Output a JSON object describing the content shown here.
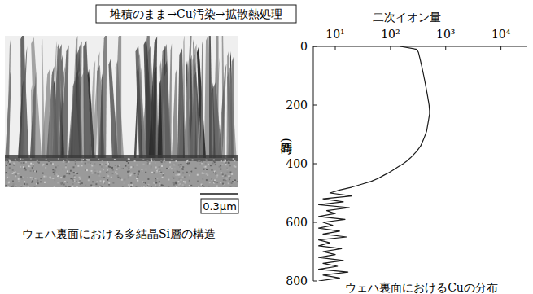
{
  "header": "堆積のまま→Cu汚染→拡散熱処理",
  "micrograph": {
    "scale_bar": "0.3μm",
    "caption": "ウェハ裏面における多結晶Si層の構造"
  },
  "chart_data": {
    "type": "line",
    "orientation": "horizontal",
    "log": "y",
    "grid": false,
    "color": "#1a1a1a",
    "y_label": "二次イオン量",
    "x_label": "時間 (s)",
    "caption": "ウェハ裏面におけるCuの分布",
    "x": [
      0,
      10,
      20,
      30,
      40,
      50,
      60,
      70,
      80,
      90,
      100,
      110,
      120,
      130,
      140,
      150,
      160,
      170,
      180,
      190,
      200,
      210,
      220,
      230,
      240,
      250,
      260,
      270,
      280,
      290,
      300,
      310,
      320,
      330,
      340,
      350,
      360,
      370,
      380,
      390,
      400,
      410,
      420,
      430,
      440,
      450,
      460,
      470,
      480,
      490,
      500,
      510,
      520,
      530,
      540,
      550,
      560,
      570,
      580,
      590,
      600,
      610,
      620,
      630,
      640,
      650,
      660,
      670,
      680,
      690,
      700,
      710,
      720,
      730,
      740,
      750,
      760,
      770,
      780,
      790,
      800
    ],
    "values": [
      150,
      300,
      320,
      330,
      340,
      350,
      360,
      370,
      380,
      390,
      400,
      410,
      420,
      430,
      440,
      450,
      460,
      470,
      480,
      490,
      500,
      505,
      510,
      510,
      500,
      490,
      480,
      470,
      460,
      450,
      430,
      410,
      390,
      370,
      350,
      320,
      290,
      260,
      230,
      200,
      170,
      140,
      115,
      95,
      75,
      60,
      45,
      30,
      20,
      12,
      8,
      20,
      6,
      14,
      5,
      18,
      7,
      10,
      5,
      15,
      6,
      9,
      5,
      12,
      6,
      16,
      5,
      8,
      5,
      13,
      6,
      10,
      5,
      14,
      6,
      11,
      5,
      17,
      6,
      12,
      5
    ],
    "xlim": [
      0,
      800
    ],
    "xticks": [
      0,
      200,
      400,
      600,
      800
    ],
    "ylim": [
      4,
      30000
    ],
    "yticks": [
      {
        "value": 10,
        "label": "10¹"
      },
      {
        "value": 100,
        "label": "10²"
      },
      {
        "value": 1000,
        "label": "10³"
      },
      {
        "value": 10000,
        "label": "10⁴"
      }
    ]
  }
}
